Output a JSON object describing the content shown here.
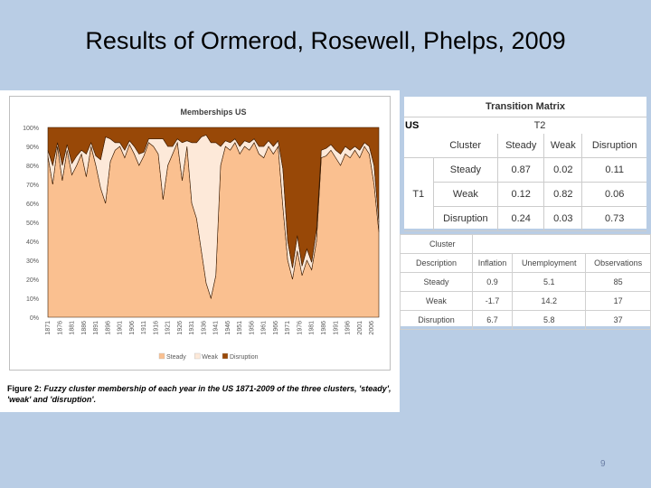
{
  "slide": {
    "title": "Results of Ormerod, Rosewell, Phelps, 2009",
    "page_number": "9"
  },
  "chart_data": {
    "type": "area",
    "title": "Memberships US",
    "stacked": true,
    "percent": true,
    "ylim": [
      0,
      100
    ],
    "y_ticks": [
      "0%",
      "10%",
      "20%",
      "30%",
      "40%",
      "50%",
      "60%",
      "70%",
      "80%",
      "90%",
      "100%"
    ],
    "x_ticks": [
      "1871",
      "1876",
      "1881",
      "1886",
      "1891",
      "1896",
      "1901",
      "1906",
      "1911",
      "1916",
      "1921",
      "1926",
      "1931",
      "1936",
      "1941",
      "1946",
      "1951",
      "1956",
      "1961",
      "1966",
      "1971",
      "1976",
      "1981",
      "1986",
      "1991",
      "1996",
      "2001",
      "2006"
    ],
    "x": [
      1871,
      1873,
      1875,
      1877,
      1879,
      1881,
      1883,
      1885,
      1887,
      1889,
      1891,
      1893,
      1895,
      1897,
      1899,
      1901,
      1903,
      1905,
      1907,
      1909,
      1911,
      1913,
      1915,
      1917,
      1919,
      1921,
      1923,
      1925,
      1927,
      1929,
      1931,
      1933,
      1935,
      1937,
      1939,
      1941,
      1943,
      1945,
      1947,
      1949,
      1951,
      1953,
      1955,
      1957,
      1959,
      1961,
      1963,
      1965,
      1967,
      1969,
      1971,
      1973,
      1975,
      1977,
      1979,
      1981,
      1983,
      1985,
      1987,
      1989,
      1991,
      1993,
      1995,
      1997,
      1999,
      2001,
      2003,
      2005,
      2007,
      2009
    ],
    "series": [
      {
        "name": "Steady",
        "color": "#fac090",
        "values": [
          85,
          70,
          90,
          72,
          88,
          75,
          80,
          86,
          74,
          90,
          80,
          68,
          60,
          82,
          88,
          90,
          84,
          91,
          86,
          80,
          85,
          92,
          90,
          86,
          62,
          80,
          86,
          92,
          72,
          90,
          60,
          52,
          35,
          18,
          10,
          22,
          80,
          90,
          88,
          92,
          86,
          90,
          88,
          92,
          86,
          84,
          90,
          86,
          90,
          58,
          30,
          20,
          35,
          22,
          30,
          25,
          40,
          84,
          85,
          88,
          84,
          80,
          86,
          84,
          88,
          84,
          90,
          86,
          70,
          45
        ]
      },
      {
        "name": "Weak",
        "color": "#fde9d9",
        "values": [
          3,
          10,
          2,
          8,
          3,
          6,
          5,
          2,
          12,
          2,
          5,
          15,
          35,
          12,
          4,
          2,
          4,
          2,
          4,
          6,
          2,
          2,
          4,
          8,
          32,
          10,
          4,
          2,
          20,
          3,
          32,
          40,
          60,
          78,
          82,
          70,
          10,
          3,
          4,
          2,
          4,
          3,
          4,
          2,
          4,
          6,
          3,
          4,
          3,
          20,
          10,
          6,
          8,
          5,
          6,
          4,
          6,
          4,
          4,
          3,
          4,
          6,
          4,
          4,
          2,
          4,
          2,
          4,
          10,
          5
        ]
      },
      {
        "name": "Disruption",
        "color": "#984807",
        "values": [
          12,
          20,
          8,
          20,
          9,
          19,
          15,
          12,
          14,
          8,
          15,
          17,
          5,
          6,
          8,
          8,
          12,
          7,
          10,
          14,
          13,
          6,
          6,
          6,
          6,
          10,
          10,
          6,
          8,
          7,
          8,
          8,
          5,
          4,
          8,
          8,
          10,
          7,
          8,
          6,
          10,
          7,
          8,
          6,
          10,
          10,
          7,
          10,
          7,
          22,
          60,
          74,
          57,
          73,
          64,
          71,
          54,
          12,
          11,
          9,
          12,
          14,
          10,
          12,
          10,
          12,
          8,
          10,
          20,
          50
        ]
      }
    ],
    "legend": [
      "Steady",
      "Weak",
      "Disruption"
    ],
    "legend_position": "bottom"
  },
  "caption": {
    "label": "Figure 2:",
    "text": "Fuzzy cluster membership of each year in the US 1871-2009 of the three clusters, 'steady', 'weak' and 'disruption'."
  },
  "transition_matrix": {
    "title": "Transition Matrix",
    "country": "US",
    "t2": "T2",
    "t1": "T1",
    "columns": [
      "Cluster",
      "Steady",
      "Weak",
      "Disruption"
    ],
    "rows": [
      {
        "label": "Steady",
        "values": [
          "0.87",
          "0.02",
          "0.11"
        ]
      },
      {
        "label": "Weak",
        "values": [
          "0.12",
          "0.82",
          "0.06"
        ]
      },
      {
        "label": "Disruption",
        "values": [
          "0.24",
          "0.03",
          "0.73"
        ]
      }
    ]
  },
  "cluster_description": {
    "header_top": "Cluster",
    "columns": [
      "Description",
      "Inflation",
      "Unemployment",
      "Observations"
    ],
    "rows": [
      {
        "label": "Steady",
        "values": [
          "0.9",
          "5.1",
          "85"
        ]
      },
      {
        "label": "Weak",
        "values": [
          "-1.7",
          "14.2",
          "17"
        ]
      },
      {
        "label": "Disruption",
        "values": [
          "6.7",
          "5.8",
          "37"
        ]
      }
    ]
  }
}
